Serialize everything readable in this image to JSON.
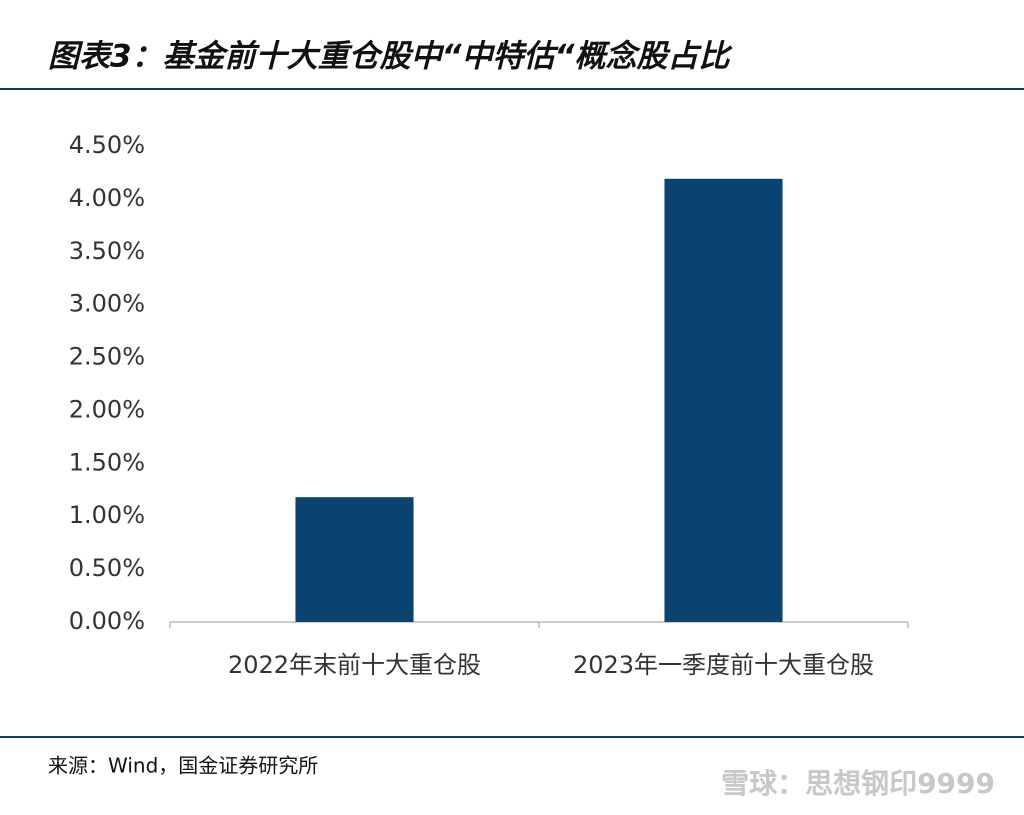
{
  "title": "图表3：基金前十大重仓股中“中特估“概念股占比",
  "chart_data": {
    "type": "bar",
    "categories": [
      "2022年末前十大重仓股",
      "2023年一季度前十大重仓股"
    ],
    "values": [
      1.18,
      4.19
    ],
    "color": "#0b4370",
    "ylim": [
      0,
      4.5
    ],
    "yticks": [
      {
        "value": 0,
        "label": "0.00%"
      },
      {
        "value": 0.5,
        "label": "0.50%"
      },
      {
        "value": 1,
        "label": "1.00%"
      },
      {
        "value": 1.5,
        "label": "1.50%"
      },
      {
        "value": 2,
        "label": "2.00%"
      },
      {
        "value": 2.5,
        "label": "2.50%"
      },
      {
        "value": 3,
        "label": "3.00%"
      },
      {
        "value": 3.5,
        "label": "3.50%"
      },
      {
        "value": 4,
        "label": "4.00%"
      },
      {
        "value": 4.5,
        "label": "4.50%"
      }
    ],
    "grid": false
  },
  "source": "来源：Wind，国金证券研究所",
  "watermark": "雪球：思想钢印9999"
}
